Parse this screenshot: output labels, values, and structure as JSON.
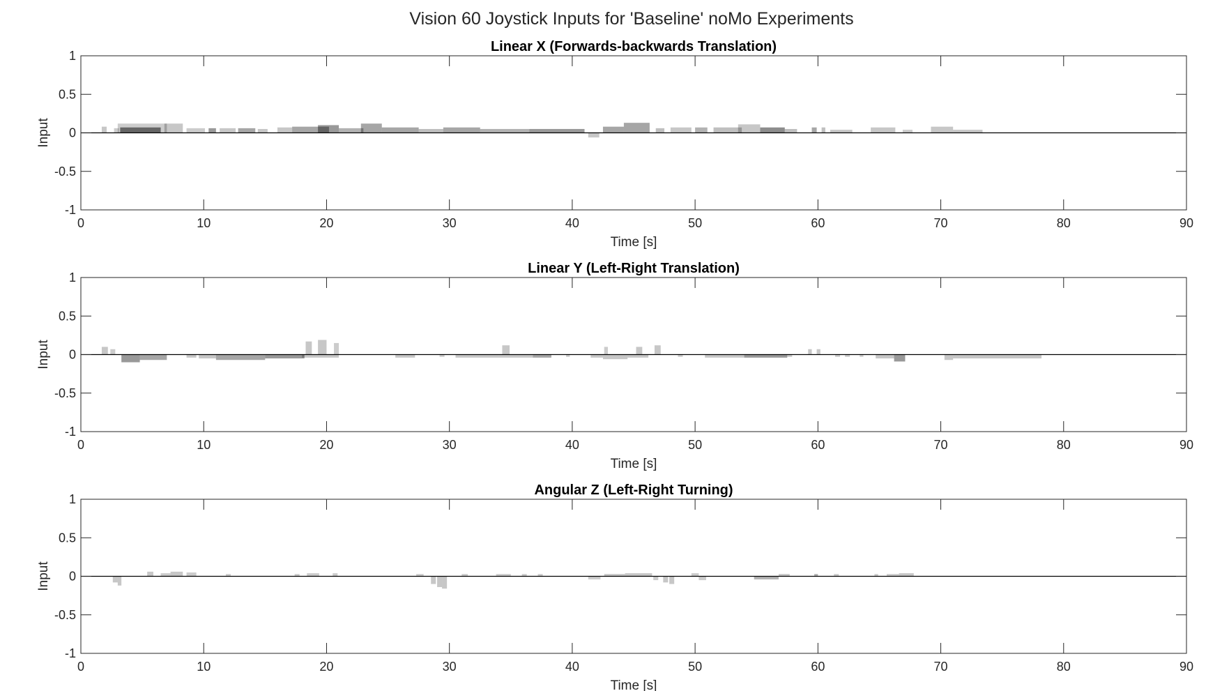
{
  "figure": {
    "title": "Vision 60 Joystick Inputs for 'Baseline' noMo Experiments"
  },
  "chart_data": [
    {
      "type": "area",
      "title": "Linear X (Forwards-backwards Translation)",
      "xlabel": "Time [s]",
      "ylabel": "Input",
      "xlim": [
        0,
        90
      ],
      "ylim": [
        -1,
        1
      ],
      "xticks": [
        "0",
        "10",
        "20",
        "30",
        "40",
        "50",
        "60",
        "70",
        "80",
        "90"
      ],
      "yticks": [
        "-1",
        "-0.5",
        "0",
        "0.5",
        "1"
      ],
      "grid": false,
      "fill_color": "#000000",
      "segments": [
        {
          "x0": 1.7,
          "x1": 2.1,
          "y": 0.08,
          "opacity": 0.22
        },
        {
          "x0": 2.7,
          "x1": 3.1,
          "y": 0.06,
          "opacity": 0.2
        },
        {
          "x0": 3.2,
          "x1": 6.5,
          "y": 0.07,
          "opacity": 0.5
        },
        {
          "x0": 3.0,
          "x1": 7.0,
          "y": 0.12,
          "opacity": 0.2
        },
        {
          "x0": 6.8,
          "x1": 8.3,
          "y": 0.12,
          "opacity": 0.22
        },
        {
          "x0": 8.6,
          "x1": 10.1,
          "y": 0.06,
          "opacity": 0.2
        },
        {
          "x0": 10.4,
          "x1": 11.0,
          "y": 0.06,
          "opacity": 0.4
        },
        {
          "x0": 11.3,
          "x1": 12.6,
          "y": 0.06,
          "opacity": 0.22
        },
        {
          "x0": 12.8,
          "x1": 14.2,
          "y": 0.06,
          "opacity": 0.35
        },
        {
          "x0": 14.4,
          "x1": 15.2,
          "y": 0.05,
          "opacity": 0.22
        },
        {
          "x0": 16.0,
          "x1": 17.2,
          "y": 0.07,
          "opacity": 0.22
        },
        {
          "x0": 17.2,
          "x1": 20.2,
          "y": 0.08,
          "opacity": 0.35
        },
        {
          "x0": 19.3,
          "x1": 21.0,
          "y": 0.1,
          "opacity": 0.4
        },
        {
          "x0": 21.0,
          "x1": 23.0,
          "y": 0.06,
          "opacity": 0.3
        },
        {
          "x0": 22.8,
          "x1": 24.5,
          "y": 0.12,
          "opacity": 0.35
        },
        {
          "x0": 24.5,
          "x1": 27.5,
          "y": 0.07,
          "opacity": 0.35
        },
        {
          "x0": 27.5,
          "x1": 29.5,
          "y": 0.05,
          "opacity": 0.25
        },
        {
          "x0": 29.5,
          "x1": 32.5,
          "y": 0.07,
          "opacity": 0.35
        },
        {
          "x0": 32.5,
          "x1": 36.5,
          "y": 0.05,
          "opacity": 0.3
        },
        {
          "x0": 36.5,
          "x1": 41.0,
          "y": 0.05,
          "opacity": 0.4
        },
        {
          "x0": 41.3,
          "x1": 42.2,
          "y": -0.06,
          "opacity": 0.22
        },
        {
          "x0": 42.5,
          "x1": 44.2,
          "y": 0.08,
          "opacity": 0.35
        },
        {
          "x0": 44.2,
          "x1": 46.3,
          "y": 0.13,
          "opacity": 0.35
        },
        {
          "x0": 46.8,
          "x1": 47.5,
          "y": 0.06,
          "opacity": 0.25
        },
        {
          "x0": 48.0,
          "x1": 49.7,
          "y": 0.07,
          "opacity": 0.22
        },
        {
          "x0": 50.0,
          "x1": 51.0,
          "y": 0.07,
          "opacity": 0.3
        },
        {
          "x0": 51.5,
          "x1": 53.8,
          "y": 0.07,
          "opacity": 0.25
        },
        {
          "x0": 53.5,
          "x1": 55.3,
          "y": 0.11,
          "opacity": 0.22
        },
        {
          "x0": 55.3,
          "x1": 57.3,
          "y": 0.07,
          "opacity": 0.45
        },
        {
          "x0": 57.3,
          "x1": 58.3,
          "y": 0.05,
          "opacity": 0.25
        },
        {
          "x0": 59.5,
          "x1": 59.9,
          "y": 0.07,
          "opacity": 0.35
        },
        {
          "x0": 60.3,
          "x1": 60.6,
          "y": 0.07,
          "opacity": 0.25
        },
        {
          "x0": 61.0,
          "x1": 62.8,
          "y": 0.04,
          "opacity": 0.22
        },
        {
          "x0": 64.3,
          "x1": 66.3,
          "y": 0.07,
          "opacity": 0.22
        },
        {
          "x0": 66.9,
          "x1": 67.7,
          "y": 0.04,
          "opacity": 0.2
        },
        {
          "x0": 69.2,
          "x1": 71.0,
          "y": 0.08,
          "opacity": 0.22
        },
        {
          "x0": 71.0,
          "x1": 73.4,
          "y": 0.04,
          "opacity": 0.22
        }
      ]
    },
    {
      "type": "area",
      "title": "Linear Y (Left-Right Translation)",
      "xlabel": "Time [s]",
      "ylabel": "Input",
      "xlim": [
        0,
        90
      ],
      "ylim": [
        -1,
        1
      ],
      "xticks": [
        "0",
        "10",
        "20",
        "30",
        "40",
        "50",
        "60",
        "70",
        "80",
        "90"
      ],
      "yticks": [
        "-1",
        "-0.5",
        "0",
        "0.5",
        "1"
      ],
      "grid": false,
      "fill_color": "#000000",
      "segments": [
        {
          "x0": 1.7,
          "x1": 2.2,
          "y": 0.1,
          "opacity": 0.22
        },
        {
          "x0": 2.4,
          "x1": 2.8,
          "y": 0.07,
          "opacity": 0.2
        },
        {
          "x0": 3.3,
          "x1": 4.8,
          "y": -0.1,
          "opacity": 0.4
        },
        {
          "x0": 4.8,
          "x1": 7.0,
          "y": -0.07,
          "opacity": 0.35
        },
        {
          "x0": 8.6,
          "x1": 9.4,
          "y": -0.04,
          "opacity": 0.22
        },
        {
          "x0": 9.6,
          "x1": 11.0,
          "y": -0.05,
          "opacity": 0.22
        },
        {
          "x0": 11.0,
          "x1": 15.0,
          "y": -0.07,
          "opacity": 0.35
        },
        {
          "x0": 15.0,
          "x1": 18.2,
          "y": -0.05,
          "opacity": 0.4
        },
        {
          "x0": 18.3,
          "x1": 18.8,
          "y": 0.17,
          "opacity": 0.22
        },
        {
          "x0": 19.3,
          "x1": 20.0,
          "y": 0.19,
          "opacity": 0.22
        },
        {
          "x0": 18.0,
          "x1": 21.0,
          "y": -0.04,
          "opacity": 0.22
        },
        {
          "x0": 20.6,
          "x1": 21.0,
          "y": 0.15,
          "opacity": 0.2
        },
        {
          "x0": 25.6,
          "x1": 27.2,
          "y": -0.04,
          "opacity": 0.22
        },
        {
          "x0": 29.2,
          "x1": 29.6,
          "y": -0.03,
          "opacity": 0.2
        },
        {
          "x0": 30.5,
          "x1": 34.0,
          "y": -0.04,
          "opacity": 0.22
        },
        {
          "x0": 34.3,
          "x1": 34.9,
          "y": 0.12,
          "opacity": 0.22
        },
        {
          "x0": 34.0,
          "x1": 36.8,
          "y": -0.04,
          "opacity": 0.22
        },
        {
          "x0": 36.8,
          "x1": 38.3,
          "y": -0.04,
          "opacity": 0.35
        },
        {
          "x0": 39.5,
          "x1": 39.8,
          "y": -0.03,
          "opacity": 0.2
        },
        {
          "x0": 41.5,
          "x1": 42.5,
          "y": -0.04,
          "opacity": 0.22
        },
        {
          "x0": 42.5,
          "x1": 44.5,
          "y": -0.06,
          "opacity": 0.22
        },
        {
          "x0": 42.6,
          "x1": 42.9,
          "y": 0.1,
          "opacity": 0.2
        },
        {
          "x0": 44.5,
          "x1": 46.2,
          "y": -0.04,
          "opacity": 0.22
        },
        {
          "x0": 45.2,
          "x1": 45.7,
          "y": 0.1,
          "opacity": 0.22
        },
        {
          "x0": 46.7,
          "x1": 47.2,
          "y": 0.12,
          "opacity": 0.22
        },
        {
          "x0": 48.6,
          "x1": 49.0,
          "y": -0.03,
          "opacity": 0.2
        },
        {
          "x0": 50.8,
          "x1": 54.0,
          "y": -0.04,
          "opacity": 0.22
        },
        {
          "x0": 54.0,
          "x1": 57.5,
          "y": -0.04,
          "opacity": 0.4
        },
        {
          "x0": 57.5,
          "x1": 57.9,
          "y": -0.03,
          "opacity": 0.22
        },
        {
          "x0": 59.2,
          "x1": 59.5,
          "y": 0.07,
          "opacity": 0.22
        },
        {
          "x0": 59.9,
          "x1": 60.2,
          "y": 0.07,
          "opacity": 0.22
        },
        {
          "x0": 61.4,
          "x1": 61.8,
          "y": -0.03,
          "opacity": 0.2
        },
        {
          "x0": 62.2,
          "x1": 62.6,
          "y": -0.03,
          "opacity": 0.2
        },
        {
          "x0": 63.4,
          "x1": 63.7,
          "y": -0.03,
          "opacity": 0.2
        },
        {
          "x0": 64.7,
          "x1": 66.2,
          "y": -0.05,
          "opacity": 0.22
        },
        {
          "x0": 66.2,
          "x1": 67.1,
          "y": -0.09,
          "opacity": 0.4
        },
        {
          "x0": 70.3,
          "x1": 71.0,
          "y": -0.07,
          "opacity": 0.22
        },
        {
          "x0": 71.0,
          "x1": 78.2,
          "y": -0.05,
          "opacity": 0.22
        }
      ]
    },
    {
      "type": "area",
      "title": "Angular Z (Left-Right Turning)",
      "xlabel": "Time [s]",
      "ylabel": "Input",
      "xlim": [
        0,
        90
      ],
      "ylim": [
        -1,
        1
      ],
      "xticks": [
        "0",
        "10",
        "20",
        "30",
        "40",
        "50",
        "60",
        "70",
        "80",
        "90"
      ],
      "yticks": [
        "-1",
        "-0.5",
        "0",
        "0.5",
        "1"
      ],
      "grid": false,
      "fill_color": "#000000",
      "segments": [
        {
          "x0": 2.6,
          "x1": 3.0,
          "y": -0.08,
          "opacity": 0.22
        },
        {
          "x0": 3.0,
          "x1": 3.3,
          "y": -0.12,
          "opacity": 0.22
        },
        {
          "x0": 5.4,
          "x1": 5.9,
          "y": 0.06,
          "opacity": 0.22
        },
        {
          "x0": 6.5,
          "x1": 7.3,
          "y": 0.04,
          "opacity": 0.2
        },
        {
          "x0": 7.3,
          "x1": 8.3,
          "y": 0.06,
          "opacity": 0.22
        },
        {
          "x0": 8.6,
          "x1": 9.4,
          "y": 0.05,
          "opacity": 0.2
        },
        {
          "x0": 11.8,
          "x1": 12.2,
          "y": 0.03,
          "opacity": 0.2
        },
        {
          "x0": 17.4,
          "x1": 17.8,
          "y": 0.03,
          "opacity": 0.2
        },
        {
          "x0": 18.4,
          "x1": 19.4,
          "y": 0.04,
          "opacity": 0.2
        },
        {
          "x0": 20.5,
          "x1": 20.9,
          "y": 0.04,
          "opacity": 0.2
        },
        {
          "x0": 27.3,
          "x1": 27.9,
          "y": 0.03,
          "opacity": 0.2
        },
        {
          "x0": 28.5,
          "x1": 28.9,
          "y": -0.1,
          "opacity": 0.22
        },
        {
          "x0": 29.0,
          "x1": 29.4,
          "y": -0.14,
          "opacity": 0.22
        },
        {
          "x0": 29.4,
          "x1": 29.8,
          "y": -0.16,
          "opacity": 0.22
        },
        {
          "x0": 31.0,
          "x1": 31.5,
          "y": 0.03,
          "opacity": 0.2
        },
        {
          "x0": 33.8,
          "x1": 35.0,
          "y": 0.03,
          "opacity": 0.2
        },
        {
          "x0": 35.9,
          "x1": 36.3,
          "y": 0.03,
          "opacity": 0.2
        },
        {
          "x0": 37.2,
          "x1": 37.6,
          "y": 0.03,
          "opacity": 0.2
        },
        {
          "x0": 41.3,
          "x1": 42.3,
          "y": -0.04,
          "opacity": 0.2
        },
        {
          "x0": 42.6,
          "x1": 44.3,
          "y": 0.03,
          "opacity": 0.22
        },
        {
          "x0": 44.3,
          "x1": 46.5,
          "y": 0.04,
          "opacity": 0.22
        },
        {
          "x0": 46.6,
          "x1": 47.0,
          "y": -0.05,
          "opacity": 0.2
        },
        {
          "x0": 47.4,
          "x1": 47.8,
          "y": -0.08,
          "opacity": 0.22
        },
        {
          "x0": 47.9,
          "x1": 48.3,
          "y": -0.1,
          "opacity": 0.22
        },
        {
          "x0": 49.7,
          "x1": 50.3,
          "y": 0.04,
          "opacity": 0.2
        },
        {
          "x0": 50.3,
          "x1": 50.9,
          "y": -0.05,
          "opacity": 0.2
        },
        {
          "x0": 54.8,
          "x1": 56.8,
          "y": -0.04,
          "opacity": 0.3
        },
        {
          "x0": 56.8,
          "x1": 57.7,
          "y": 0.03,
          "opacity": 0.22
        },
        {
          "x0": 59.7,
          "x1": 60.0,
          "y": 0.03,
          "opacity": 0.3
        },
        {
          "x0": 61.3,
          "x1": 61.7,
          "y": 0.03,
          "opacity": 0.2
        },
        {
          "x0": 64.6,
          "x1": 64.9,
          "y": 0.03,
          "opacity": 0.2
        },
        {
          "x0": 65.6,
          "x1": 66.6,
          "y": 0.03,
          "opacity": 0.2
        },
        {
          "x0": 66.6,
          "x1": 67.8,
          "y": 0.04,
          "opacity": 0.22
        }
      ]
    }
  ]
}
